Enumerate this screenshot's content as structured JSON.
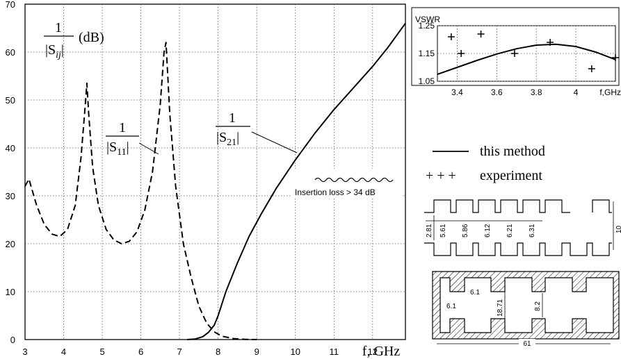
{
  "chart_data": [
    {
      "type": "line",
      "title": "",
      "ylabel_lines": [
        "1",
        "|S",
        "ij",
        "|",
        "(dB)"
      ],
      "xlabel": "f, GHz",
      "xlim": [
        3,
        12.85
      ],
      "ylim": [
        0,
        70
      ],
      "xticks": [
        3,
        4,
        5,
        6,
        7,
        8,
        9,
        10,
        11,
        12
      ],
      "yticks": [
        0,
        10,
        20,
        30,
        40,
        50,
        60,
        70
      ],
      "grid": true,
      "series": [
        {
          "name": "1/|S11|",
          "name_parts": [
            "1",
            "|S",
            "11",
            "|"
          ],
          "style": "dashed",
          "x": [
            3.0,
            3.1,
            3.3,
            3.5,
            3.7,
            3.9,
            4.1,
            4.3,
            4.45,
            4.55,
            4.6,
            4.65,
            4.75,
            4.9,
            5.1,
            5.3,
            5.5,
            5.7,
            5.9,
            6.1,
            6.3,
            6.5,
            6.6,
            6.65,
            6.75,
            6.9,
            7.1,
            7.3,
            7.5,
            7.7,
            7.9,
            8.1,
            8.4,
            8.7,
            9.0
          ],
          "y": [
            32,
            33.5,
            28,
            24,
            22,
            21.5,
            23,
            28,
            38,
            48,
            53.5,
            47,
            36,
            28,
            23,
            20.8,
            20,
            20.5,
            22.5,
            27,
            35,
            49,
            60,
            62,
            47,
            32,
            20,
            13,
            7,
            3.5,
            1.6,
            0.7,
            0.2,
            0.05,
            0.0
          ]
        },
        {
          "name": "1/|S21|",
          "name_parts": [
            "1",
            "|S",
            "21",
            "|"
          ],
          "style": "solid",
          "x": [
            7.2,
            7.4,
            7.6,
            7.75,
            7.9,
            8.0,
            8.2,
            8.5,
            8.8,
            9.1,
            9.5,
            10.0,
            10.5,
            11.0,
            11.5,
            12.0,
            12.4,
            12.85
          ],
          "y": [
            0,
            0.1,
            0.6,
            1.5,
            3,
            5,
            10,
            16,
            21.5,
            26,
            31.5,
            37.5,
            43,
            48,
            52.5,
            57,
            61,
            66
          ]
        }
      ],
      "annotations": [
        "Insertion loss > 34 dB"
      ]
    },
    {
      "type": "line",
      "title": "VSWR",
      "xlabel": "f,GHz",
      "xlim": [
        3.3,
        4.2
      ],
      "ylim": [
        1.05,
        1.25
      ],
      "xticks": [
        "3.4",
        "3.6",
        "3.8",
        "4"
      ],
      "yticks": [
        "1.05",
        "1.15",
        "1.25"
      ],
      "xtick_values": [
        3.4,
        3.6,
        3.8,
        4.0
      ],
      "ytick_values": [
        1.05,
        1.15,
        1.25
      ],
      "grid": true,
      "series": [
        {
          "name": "this method",
          "style": "solid",
          "x": [
            3.3,
            3.4,
            3.5,
            3.6,
            3.7,
            3.8,
            3.9,
            4.0,
            4.1,
            4.2
          ],
          "y": [
            1.075,
            1.1,
            1.125,
            1.148,
            1.167,
            1.18,
            1.183,
            1.175,
            1.155,
            1.128
          ]
        },
        {
          "name": "experiment",
          "style": "markers",
          "x": [
            3.37,
            3.42,
            3.52,
            3.69,
            3.87,
            4.08,
            4.2
          ],
          "y": [
            1.21,
            1.15,
            1.22,
            1.15,
            1.19,
            1.095,
            1.135
          ]
        }
      ]
    }
  ],
  "legend": {
    "line_label": "this method",
    "marker_symbols": "+ + +",
    "marker_label": "experiment"
  },
  "diagram": {
    "top_dims": [
      "2.81",
      "5.61",
      "5.86",
      "6.12",
      "6.21",
      "6.31",
      "10"
    ],
    "bottom_dims": [
      "6.1",
      "6.1",
      "18.71",
      "8.2",
      "61"
    ]
  },
  "colors": {
    "ink": "#000000",
    "grid": "#555555",
    "background": "#ffffff"
  }
}
